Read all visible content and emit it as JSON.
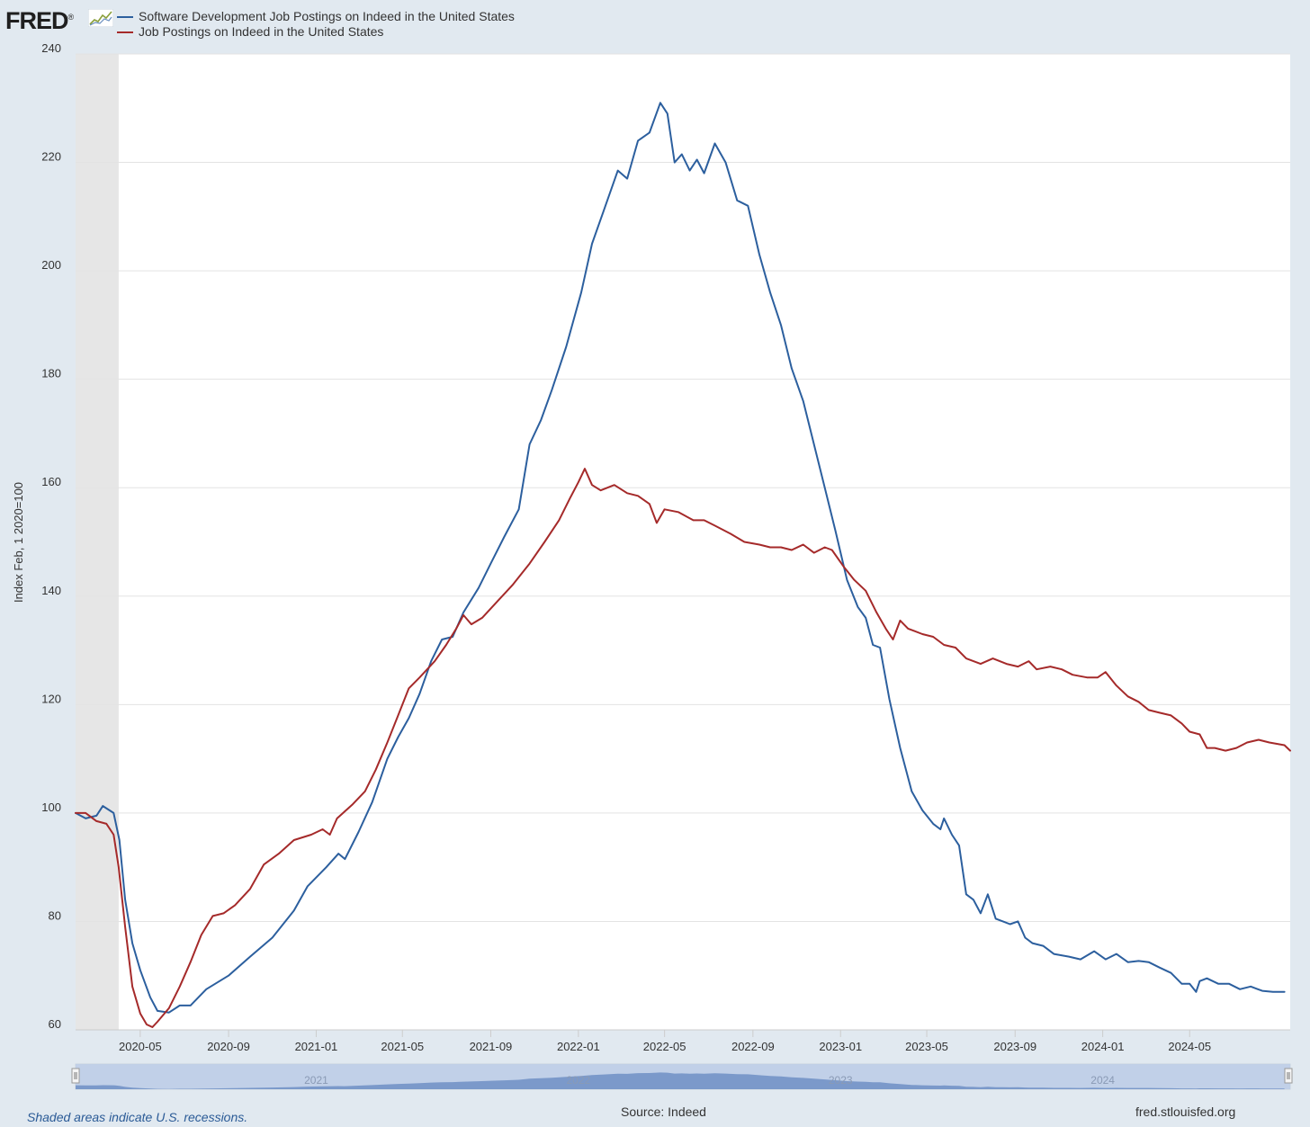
{
  "logo": {
    "text": "FRED",
    "registered": "®"
  },
  "footer": {
    "note": "Shaded areas indicate U.S. recessions.",
    "source": "Source: Indeed",
    "url": "fred.stlouisfed.org"
  },
  "colors": {
    "series0": "#2c5f9e",
    "series1": "#a52a2a",
    "recession": "#e6e6e6",
    "navigator": "#bccde6"
  },
  "navigator": {
    "year_labels": [
      "2021",
      "2022",
      "2023",
      "2024"
    ]
  },
  "chart_data": {
    "type": "line",
    "title": "",
    "xlabel": "",
    "ylabel": "Index Feb, 1 2020=100",
    "ylim": [
      60,
      240
    ],
    "yticks": [
      60,
      80,
      100,
      120,
      140,
      160,
      180,
      200,
      220,
      240
    ],
    "xlim": [
      "2020-02-01",
      "2024-09-18"
    ],
    "xticks": [
      "2020-05",
      "2020-09",
      "2021-01",
      "2021-05",
      "2021-09",
      "2022-01",
      "2022-05",
      "2022-09",
      "2023-01",
      "2023-05",
      "2023-09",
      "2024-01",
      "2024-05"
    ],
    "grid": "horizontal",
    "legend": "top-left",
    "recessions": [
      [
        "2020-02-01",
        "2020-04-01"
      ]
    ],
    "series": [
      {
        "name": "Software Development Job Postings on Indeed in the United States",
        "color": "#2c5f9e",
        "points": [
          [
            "2020-02-01",
            100
          ],
          [
            "2020-02-15",
            99
          ],
          [
            "2020-03-01",
            99.5
          ],
          [
            "2020-03-10",
            101.3
          ],
          [
            "2020-03-25",
            100
          ],
          [
            "2020-04-02",
            95
          ],
          [
            "2020-04-10",
            84
          ],
          [
            "2020-04-20",
            76
          ],
          [
            "2020-05-01",
            71
          ],
          [
            "2020-05-15",
            66
          ],
          [
            "2020-05-25",
            63.5
          ],
          [
            "2020-06-10",
            63.2
          ],
          [
            "2020-06-25",
            64.5
          ],
          [
            "2020-07-10",
            64.5
          ],
          [
            "2020-08-01",
            67.5
          ],
          [
            "2020-09-01",
            70
          ],
          [
            "2020-10-01",
            73.5
          ],
          [
            "2020-11-01",
            77
          ],
          [
            "2020-12-01",
            82
          ],
          [
            "2020-12-20",
            86.5
          ],
          [
            "2021-01-15",
            90
          ],
          [
            "2021-02-01",
            92.5
          ],
          [
            "2021-02-10",
            91.5
          ],
          [
            "2021-03-01",
            96.5
          ],
          [
            "2021-03-20",
            102
          ],
          [
            "2021-04-10",
            110
          ],
          [
            "2021-04-25",
            114
          ],
          [
            "2021-05-10",
            117.5
          ],
          [
            "2021-05-25",
            122
          ],
          [
            "2021-06-10",
            128
          ],
          [
            "2021-06-25",
            132
          ],
          [
            "2021-07-10",
            132.5
          ],
          [
            "2021-07-25",
            137
          ],
          [
            "2021-08-15",
            141.5
          ],
          [
            "2021-09-01",
            146
          ],
          [
            "2021-09-20",
            151
          ],
          [
            "2021-10-10",
            156
          ],
          [
            "2021-10-25",
            168
          ],
          [
            "2021-11-10",
            172.5
          ],
          [
            "2021-11-25",
            178
          ],
          [
            "2021-12-15",
            186
          ],
          [
            "2022-01-05",
            196
          ],
          [
            "2022-01-20",
            205
          ],
          [
            "2022-02-05",
            211
          ],
          [
            "2022-02-25",
            218.5
          ],
          [
            "2022-03-10",
            217
          ],
          [
            "2022-03-25",
            224
          ],
          [
            "2022-04-10",
            225.5
          ],
          [
            "2022-04-25",
            231
          ],
          [
            "2022-05-05",
            229
          ],
          [
            "2022-05-15",
            220
          ],
          [
            "2022-05-25",
            221.5
          ],
          [
            "2022-06-05",
            218.5
          ],
          [
            "2022-06-15",
            220.5
          ],
          [
            "2022-06-25",
            218
          ],
          [
            "2022-07-10",
            223.5
          ],
          [
            "2022-07-25",
            220
          ],
          [
            "2022-08-10",
            213
          ],
          [
            "2022-08-25",
            212
          ],
          [
            "2022-09-10",
            203
          ],
          [
            "2022-09-25",
            196
          ],
          [
            "2022-10-10",
            190
          ],
          [
            "2022-10-25",
            182
          ],
          [
            "2022-11-10",
            176
          ],
          [
            "2022-11-25",
            168
          ],
          [
            "2022-12-10",
            160
          ],
          [
            "2022-12-25",
            152
          ],
          [
            "2023-01-10",
            143
          ],
          [
            "2023-01-25",
            138
          ],
          [
            "2023-02-05",
            136
          ],
          [
            "2023-02-15",
            131
          ],
          [
            "2023-02-25",
            130.5
          ],
          [
            "2023-03-10",
            121
          ],
          [
            "2023-03-25",
            112
          ],
          [
            "2023-04-10",
            104
          ],
          [
            "2023-04-25",
            100.5
          ],
          [
            "2023-05-10",
            98
          ],
          [
            "2023-05-20",
            97
          ],
          [
            "2023-05-25",
            99
          ],
          [
            "2023-06-05",
            96
          ],
          [
            "2023-06-15",
            94
          ],
          [
            "2023-06-25",
            85
          ],
          [
            "2023-07-05",
            84
          ],
          [
            "2023-07-15",
            81.5
          ],
          [
            "2023-07-25",
            85
          ],
          [
            "2023-08-05",
            80.5
          ],
          [
            "2023-08-15",
            80
          ],
          [
            "2023-08-25",
            79.5
          ],
          [
            "2023-09-05",
            80
          ],
          [
            "2023-09-15",
            77
          ],
          [
            "2023-09-25",
            76
          ],
          [
            "2023-10-10",
            75.5
          ],
          [
            "2023-10-25",
            74
          ],
          [
            "2023-11-15",
            73.5
          ],
          [
            "2023-12-01",
            73
          ],
          [
            "2023-12-20",
            74.5
          ],
          [
            "2024-01-05",
            73
          ],
          [
            "2024-01-20",
            74
          ],
          [
            "2024-02-05",
            72.5
          ],
          [
            "2024-02-20",
            72.7
          ],
          [
            "2024-03-05",
            72.5
          ],
          [
            "2024-03-20",
            71.5
          ],
          [
            "2024-04-05",
            70.5
          ],
          [
            "2024-04-20",
            68.5
          ],
          [
            "2024-05-01",
            68.5
          ],
          [
            "2024-05-10",
            67
          ],
          [
            "2024-05-15",
            69
          ],
          [
            "2024-05-25",
            69.5
          ],
          [
            "2024-06-10",
            68.5
          ],
          [
            "2024-06-25",
            68.5
          ],
          [
            "2024-07-10",
            67.5
          ],
          [
            "2024-07-25",
            68
          ],
          [
            "2024-08-10",
            67.2
          ],
          [
            "2024-08-25",
            67
          ],
          [
            "2024-09-10",
            67
          ]
        ]
      },
      {
        "name": "Job Postings on Indeed in the United States",
        "color": "#a52a2a",
        "points": [
          [
            "2020-02-01",
            100
          ],
          [
            "2020-02-15",
            100
          ],
          [
            "2020-03-01",
            98.5
          ],
          [
            "2020-03-15",
            98
          ],
          [
            "2020-03-25",
            96
          ],
          [
            "2020-04-01",
            90
          ],
          [
            "2020-04-10",
            79
          ],
          [
            "2020-04-20",
            68
          ],
          [
            "2020-05-01",
            63
          ],
          [
            "2020-05-10",
            61
          ],
          [
            "2020-05-18",
            60.5
          ],
          [
            "2020-05-25",
            61.5
          ],
          [
            "2020-06-10",
            64
          ],
          [
            "2020-06-25",
            68
          ],
          [
            "2020-07-10",
            72.5
          ],
          [
            "2020-07-25",
            77.5
          ],
          [
            "2020-08-10",
            81
          ],
          [
            "2020-08-25",
            81.5
          ],
          [
            "2020-09-10",
            83
          ],
          [
            "2020-10-01",
            86
          ],
          [
            "2020-10-20",
            90.5
          ],
          [
            "2020-11-10",
            92.5
          ],
          [
            "2020-12-01",
            95
          ],
          [
            "2020-12-25",
            96
          ],
          [
            "2021-01-10",
            97
          ],
          [
            "2021-01-20",
            96
          ],
          [
            "2021-01-30",
            99
          ],
          [
            "2021-02-20",
            101.5
          ],
          [
            "2021-03-10",
            104
          ],
          [
            "2021-03-25",
            108
          ],
          [
            "2021-04-10",
            113
          ],
          [
            "2021-04-25",
            118
          ],
          [
            "2021-05-10",
            123
          ],
          [
            "2021-05-25",
            125
          ],
          [
            "2021-06-15",
            128
          ],
          [
            "2021-07-01",
            131
          ],
          [
            "2021-07-15",
            134
          ],
          [
            "2021-07-25",
            136.5
          ],
          [
            "2021-08-05",
            134.8
          ],
          [
            "2021-08-20",
            136
          ],
          [
            "2021-09-10",
            139
          ],
          [
            "2021-10-01",
            142
          ],
          [
            "2021-10-25",
            146
          ],
          [
            "2021-11-15",
            150
          ],
          [
            "2021-12-05",
            154
          ],
          [
            "2021-12-20",
            158
          ],
          [
            "2022-01-01",
            161
          ],
          [
            "2022-01-10",
            163.5
          ],
          [
            "2022-01-20",
            160.5
          ],
          [
            "2022-02-01",
            159.5
          ],
          [
            "2022-02-20",
            160.5
          ],
          [
            "2022-03-10",
            159
          ],
          [
            "2022-03-25",
            158.5
          ],
          [
            "2022-04-10",
            157
          ],
          [
            "2022-04-20",
            153.5
          ],
          [
            "2022-05-01",
            156
          ],
          [
            "2022-05-20",
            155.5
          ],
          [
            "2022-06-10",
            154
          ],
          [
            "2022-06-25",
            154
          ],
          [
            "2022-07-10",
            153
          ],
          [
            "2022-08-01",
            151.5
          ],
          [
            "2022-08-20",
            150
          ],
          [
            "2022-09-10",
            149.5
          ],
          [
            "2022-09-25",
            149
          ],
          [
            "2022-10-10",
            149
          ],
          [
            "2022-10-25",
            148.5
          ],
          [
            "2022-11-10",
            149.5
          ],
          [
            "2022-11-25",
            148
          ],
          [
            "2022-12-10",
            149
          ],
          [
            "2022-12-20",
            148.5
          ],
          [
            "2023-01-05",
            145.5
          ],
          [
            "2023-01-20",
            143
          ],
          [
            "2023-02-05",
            141
          ],
          [
            "2023-02-20",
            137
          ],
          [
            "2023-03-05",
            134
          ],
          [
            "2023-03-15",
            132
          ],
          [
            "2023-03-25",
            135.5
          ],
          [
            "2023-04-05",
            134
          ],
          [
            "2023-04-25",
            133
          ],
          [
            "2023-05-10",
            132.5
          ],
          [
            "2023-05-25",
            131
          ],
          [
            "2023-06-10",
            130.5
          ],
          [
            "2023-06-25",
            128.5
          ],
          [
            "2023-07-15",
            127.5
          ],
          [
            "2023-08-01",
            128.5
          ],
          [
            "2023-08-20",
            127.5
          ],
          [
            "2023-09-05",
            127
          ],
          [
            "2023-09-20",
            128
          ],
          [
            "2023-10-01",
            126.5
          ],
          [
            "2023-10-20",
            127
          ],
          [
            "2023-11-05",
            126.5
          ],
          [
            "2023-11-20",
            125.5
          ],
          [
            "2023-12-10",
            125
          ],
          [
            "2023-12-25",
            125
          ],
          [
            "2024-01-05",
            126
          ],
          [
            "2024-01-20",
            123.5
          ],
          [
            "2024-02-05",
            121.5
          ],
          [
            "2024-02-20",
            120.5
          ],
          [
            "2024-03-05",
            119
          ],
          [
            "2024-03-20",
            118.5
          ],
          [
            "2024-04-05",
            118
          ],
          [
            "2024-04-20",
            116.5
          ],
          [
            "2024-05-01",
            115
          ],
          [
            "2024-05-15",
            114.5
          ],
          [
            "2024-05-25",
            112
          ],
          [
            "2024-06-05",
            112
          ],
          [
            "2024-06-20",
            111.5
          ],
          [
            "2024-07-05",
            112
          ],
          [
            "2024-07-20",
            113
          ],
          [
            "2024-08-05",
            113.5
          ],
          [
            "2024-08-20",
            113
          ],
          [
            "2024-09-10",
            112.5
          ],
          [
            "2024-09-18",
            111.5
          ]
        ]
      }
    ]
  }
}
